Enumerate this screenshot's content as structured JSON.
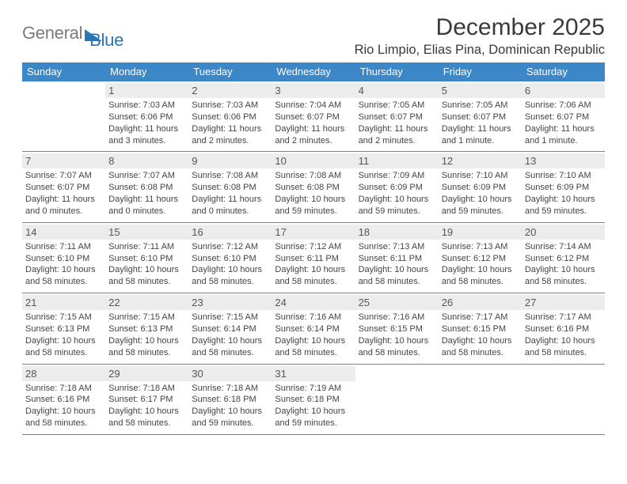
{
  "logo": {
    "text_gray": "General",
    "text_blue": "Blue",
    "triangle_color": "#2a74b8"
  },
  "title": "December 2025",
  "location": "Rio Limpio, Elias Pina, Dominican Republic",
  "header_bg": "#3b87c8",
  "daynum_bg": "#ececec",
  "border_color": "#818181",
  "day_names": [
    "Sunday",
    "Monday",
    "Tuesday",
    "Wednesday",
    "Thursday",
    "Friday",
    "Saturday"
  ],
  "weeks": [
    [
      null,
      {
        "n": "1",
        "sr": "7:03 AM",
        "ss": "6:06 PM",
        "dl": "11 hours and 3 minutes."
      },
      {
        "n": "2",
        "sr": "7:03 AM",
        "ss": "6:06 PM",
        "dl": "11 hours and 2 minutes."
      },
      {
        "n": "3",
        "sr": "7:04 AM",
        "ss": "6:07 PM",
        "dl": "11 hours and 2 minutes."
      },
      {
        "n": "4",
        "sr": "7:05 AM",
        "ss": "6:07 PM",
        "dl": "11 hours and 2 minutes."
      },
      {
        "n": "5",
        "sr": "7:05 AM",
        "ss": "6:07 PM",
        "dl": "11 hours and 1 minute."
      },
      {
        "n": "6",
        "sr": "7:06 AM",
        "ss": "6:07 PM",
        "dl": "11 hours and 1 minute."
      }
    ],
    [
      {
        "n": "7",
        "sr": "7:07 AM",
        "ss": "6:07 PM",
        "dl": "11 hours and 0 minutes."
      },
      {
        "n": "8",
        "sr": "7:07 AM",
        "ss": "6:08 PM",
        "dl": "11 hours and 0 minutes."
      },
      {
        "n": "9",
        "sr": "7:08 AM",
        "ss": "6:08 PM",
        "dl": "11 hours and 0 minutes."
      },
      {
        "n": "10",
        "sr": "7:08 AM",
        "ss": "6:08 PM",
        "dl": "10 hours and 59 minutes."
      },
      {
        "n": "11",
        "sr": "7:09 AM",
        "ss": "6:09 PM",
        "dl": "10 hours and 59 minutes."
      },
      {
        "n": "12",
        "sr": "7:10 AM",
        "ss": "6:09 PM",
        "dl": "10 hours and 59 minutes."
      },
      {
        "n": "13",
        "sr": "7:10 AM",
        "ss": "6:09 PM",
        "dl": "10 hours and 59 minutes."
      }
    ],
    [
      {
        "n": "14",
        "sr": "7:11 AM",
        "ss": "6:10 PM",
        "dl": "10 hours and 58 minutes."
      },
      {
        "n": "15",
        "sr": "7:11 AM",
        "ss": "6:10 PM",
        "dl": "10 hours and 58 minutes."
      },
      {
        "n": "16",
        "sr": "7:12 AM",
        "ss": "6:10 PM",
        "dl": "10 hours and 58 minutes."
      },
      {
        "n": "17",
        "sr": "7:12 AM",
        "ss": "6:11 PM",
        "dl": "10 hours and 58 minutes."
      },
      {
        "n": "18",
        "sr": "7:13 AM",
        "ss": "6:11 PM",
        "dl": "10 hours and 58 minutes."
      },
      {
        "n": "19",
        "sr": "7:13 AM",
        "ss": "6:12 PM",
        "dl": "10 hours and 58 minutes."
      },
      {
        "n": "20",
        "sr": "7:14 AM",
        "ss": "6:12 PM",
        "dl": "10 hours and 58 minutes."
      }
    ],
    [
      {
        "n": "21",
        "sr": "7:15 AM",
        "ss": "6:13 PM",
        "dl": "10 hours and 58 minutes."
      },
      {
        "n": "22",
        "sr": "7:15 AM",
        "ss": "6:13 PM",
        "dl": "10 hours and 58 minutes."
      },
      {
        "n": "23",
        "sr": "7:15 AM",
        "ss": "6:14 PM",
        "dl": "10 hours and 58 minutes."
      },
      {
        "n": "24",
        "sr": "7:16 AM",
        "ss": "6:14 PM",
        "dl": "10 hours and 58 minutes."
      },
      {
        "n": "25",
        "sr": "7:16 AM",
        "ss": "6:15 PM",
        "dl": "10 hours and 58 minutes."
      },
      {
        "n": "26",
        "sr": "7:17 AM",
        "ss": "6:15 PM",
        "dl": "10 hours and 58 minutes."
      },
      {
        "n": "27",
        "sr": "7:17 AM",
        "ss": "6:16 PM",
        "dl": "10 hours and 58 minutes."
      }
    ],
    [
      {
        "n": "28",
        "sr": "7:18 AM",
        "ss": "6:16 PM",
        "dl": "10 hours and 58 minutes."
      },
      {
        "n": "29",
        "sr": "7:18 AM",
        "ss": "6:17 PM",
        "dl": "10 hours and 58 minutes."
      },
      {
        "n": "30",
        "sr": "7:18 AM",
        "ss": "6:18 PM",
        "dl": "10 hours and 59 minutes."
      },
      {
        "n": "31",
        "sr": "7:19 AM",
        "ss": "6:18 PM",
        "dl": "10 hours and 59 minutes."
      },
      null,
      null,
      null
    ]
  ],
  "labels": {
    "sunrise": "Sunrise: ",
    "sunset": "Sunset: ",
    "daylight": "Daylight: "
  }
}
